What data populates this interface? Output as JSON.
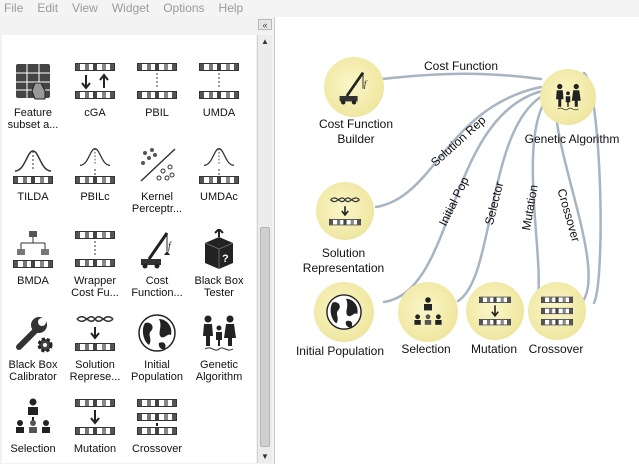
{
  "menu": [
    "File",
    "Edit",
    "View",
    "Widget",
    "Options",
    "Help"
  ],
  "panel": {
    "collapse_glyph": "«"
  },
  "scrollbar": {
    "up_glyph": "▲",
    "down_glyph": "▼"
  },
  "toolbox": [
    {
      "icon": "table-hand-icon",
      "line1": "Feature",
      "line2": "subset a..."
    },
    {
      "icon": "cga-icon",
      "line1": "cGA",
      "line2": ""
    },
    {
      "icon": "pbil-icon",
      "line1": "PBIL",
      "line2": ""
    },
    {
      "icon": "umda-icon",
      "line1": "UMDA",
      "line2": ""
    },
    {
      "icon": "tilda-icon",
      "line1": "TILDA",
      "line2": ""
    },
    {
      "icon": "pbilc-icon",
      "line1": "PBILc",
      "line2": ""
    },
    {
      "icon": "kernel-icon",
      "line1": "Kernel",
      "line2": "Perceptr..."
    },
    {
      "icon": "umdac-icon",
      "line1": "UMDAc",
      "line2": ""
    },
    {
      "icon": "bmda-icon",
      "line1": "BMDA",
      "line2": ""
    },
    {
      "icon": "wrapper-icon",
      "line1": "Wrapper",
      "line2": "Cost Fu..."
    },
    {
      "icon": "crane-icon",
      "line1": "Cost",
      "line2": "Function..."
    },
    {
      "icon": "black-box-icon",
      "line1": "Black Box",
      "line2": "Tester"
    },
    {
      "icon": "wrench-gear-icon",
      "line1": "Black Box",
      "line2": "Calibrator"
    },
    {
      "icon": "dna-icon",
      "line1": "Solution",
      "line2": "Represe..."
    },
    {
      "icon": "globe-icon",
      "line1": "Initial",
      "line2": "Population"
    },
    {
      "icon": "family-icon",
      "line1": "Genetic",
      "line2": "Algorithm"
    },
    {
      "icon": "selection-icon",
      "line1": "Selection",
      "line2": ""
    },
    {
      "icon": "mutation-icon",
      "line1": "Mutation",
      "line2": ""
    },
    {
      "icon": "crossover-icon",
      "line1": "Crossover",
      "line2": ""
    }
  ],
  "workflow": {
    "nodes": {
      "cost_function_builder": {
        "line1": "Cost Function",
        "line2": "Builder"
      },
      "genetic_algorithm": "Genetic Algorithm",
      "solution_representation": {
        "line1": "Solution",
        "line2": "Representation"
      },
      "initial_population": "Initial Population",
      "selection": "Selection",
      "mutation": "Mutation",
      "crossover": "Crossover"
    },
    "links": {
      "cost_function": "Cost Function",
      "solution_rep": "Solution Rep",
      "initial_pop": "Initial Pop",
      "selector": "Selector",
      "mutation": "Mutation",
      "crossover": "Crossover"
    }
  }
}
